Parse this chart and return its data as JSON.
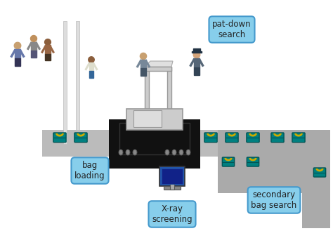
{
  "bg_color": "#f0f0f0",
  "title": "",
  "labels": {
    "pat_down": "pat-down\nsearch",
    "bag_loading": "bag\nloading",
    "xray": "X-ray\nscreening",
    "secondary": "secondary\nbag search"
  },
  "label_box_color": "#87CEEB",
  "label_box_edge": "#4499cc",
  "conveyor_color": "#888888",
  "conveyor_dark": "#111111",
  "bag_color": "#008080",
  "bag_handle_color": "#ccaa00",
  "queue_line_color": "#cccccc",
  "detector_color": "#cccccc",
  "detector_edge": "#aaaaaa",
  "secondary_area_color": "#aaaaaa"
}
